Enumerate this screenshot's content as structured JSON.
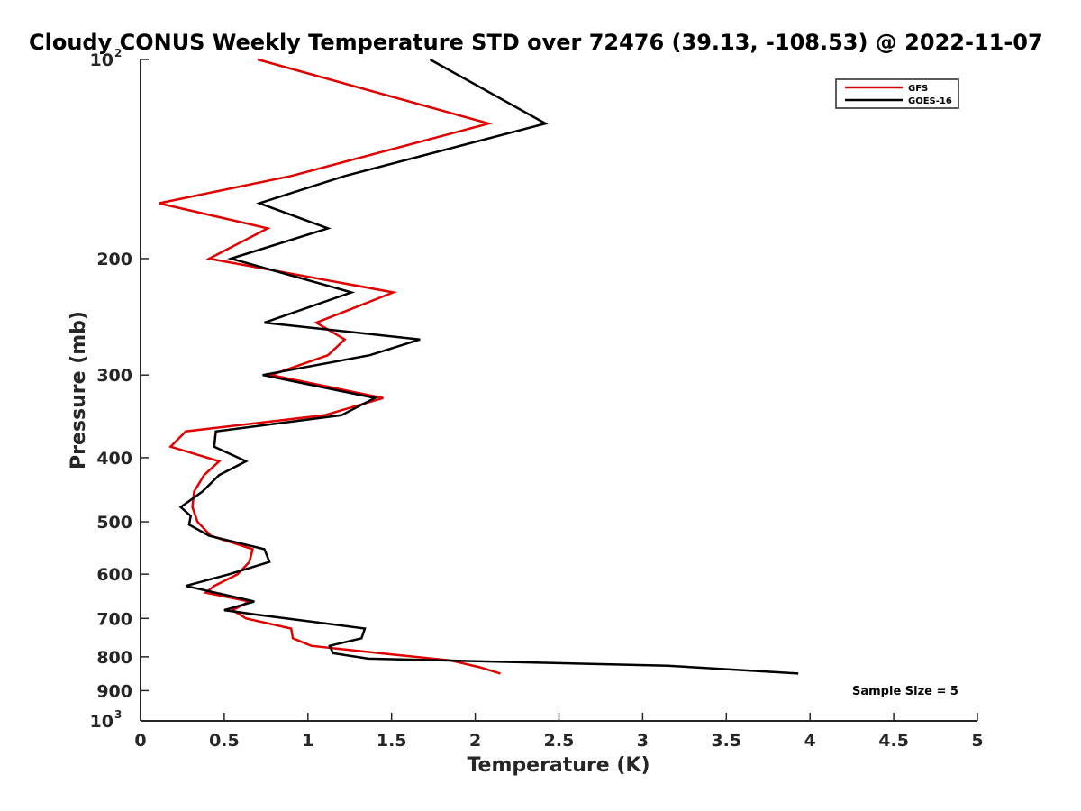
{
  "chart_data": {
    "type": "line",
    "title": "Cloudy CONUS Weekly Temperature STD over 72476 (39.13, -108.53) @ 2022-11-07",
    "xlabel": "Temperature (K)",
    "ylabel": "Pressure (mb)",
    "xlim": [
      0,
      5
    ],
    "ylim": [
      100,
      1000
    ],
    "y_scale": "log",
    "y_reversed": true,
    "grid": false,
    "legend_position": "top-right",
    "x_ticks": [
      "0",
      "0.5",
      "1",
      "1.5",
      "2",
      "2.5",
      "3",
      "3.5",
      "4",
      "4.5",
      "5"
    ],
    "y_ticks": [
      {
        "value": 100,
        "base": "10",
        "exp": "2"
      },
      {
        "value": 200,
        "label": "200"
      },
      {
        "value": 300,
        "label": "300"
      },
      {
        "value": 400,
        "label": "400"
      },
      {
        "value": 500,
        "label": "500"
      },
      {
        "value": 600,
        "label": "600"
      },
      {
        "value": 700,
        "label": "700"
      },
      {
        "value": 800,
        "label": "800"
      },
      {
        "value": 900,
        "label": "900"
      },
      {
        "value": 1000,
        "base": "10",
        "exp": "3"
      }
    ],
    "annotation": "Sample Size = 5",
    "series": [
      {
        "name": "GFS",
        "color": "#e00000",
        "points": [
          [
            0.7,
            100
          ],
          [
            2.08,
            125
          ],
          [
            0.9,
            150
          ],
          [
            0.11,
            165
          ],
          [
            0.76,
            180
          ],
          [
            0.41,
            200
          ],
          [
            1.51,
            225
          ],
          [
            1.05,
            250
          ],
          [
            1.22,
            265
          ],
          [
            1.12,
            280
          ],
          [
            0.78,
            300
          ],
          [
            1.45,
            325
          ],
          [
            1.1,
            345
          ],
          [
            0.27,
            365
          ],
          [
            0.18,
            385
          ],
          [
            0.47,
            405
          ],
          [
            0.38,
            425
          ],
          [
            0.32,
            450
          ],
          [
            0.31,
            475
          ],
          [
            0.34,
            500
          ],
          [
            0.42,
            525
          ],
          [
            0.67,
            550
          ],
          [
            0.65,
            575
          ],
          [
            0.58,
            600
          ],
          [
            0.44,
            625
          ],
          [
            0.39,
            640
          ],
          [
            0.65,
            660
          ],
          [
            0.55,
            680
          ],
          [
            0.63,
            700
          ],
          [
            0.9,
            725
          ],
          [
            0.91,
            750
          ],
          [
            1.02,
            770
          ],
          [
            1.43,
            790
          ],
          [
            1.85,
            810
          ],
          [
            2.03,
            830
          ],
          [
            2.15,
            848
          ]
        ]
      },
      {
        "name": "GOES-16",
        "color": "#000000",
        "points": [
          [
            1.73,
            100
          ],
          [
            2.42,
            125
          ],
          [
            1.22,
            150
          ],
          [
            0.71,
            165
          ],
          [
            1.12,
            180
          ],
          [
            0.54,
            200
          ],
          [
            1.26,
            225
          ],
          [
            0.74,
            250
          ],
          [
            1.67,
            265
          ],
          [
            1.37,
            280
          ],
          [
            0.73,
            300
          ],
          [
            1.4,
            325
          ],
          [
            1.2,
            345
          ],
          [
            0.45,
            365
          ],
          [
            0.44,
            385
          ],
          [
            0.63,
            405
          ],
          [
            0.47,
            425
          ],
          [
            0.37,
            450
          ],
          [
            0.24,
            475
          ],
          [
            0.3,
            490
          ],
          [
            0.29,
            505
          ],
          [
            0.41,
            525
          ],
          [
            0.74,
            550
          ],
          [
            0.77,
            575
          ],
          [
            0.53,
            600
          ],
          [
            0.27,
            625
          ],
          [
            0.68,
            660
          ],
          [
            0.5,
            680
          ],
          [
            0.68,
            690
          ],
          [
            1.34,
            725
          ],
          [
            1.32,
            750
          ],
          [
            1.13,
            770
          ],
          [
            1.15,
            790
          ],
          [
            1.36,
            805
          ],
          [
            3.15,
            825
          ],
          [
            3.93,
            848
          ]
        ]
      }
    ]
  }
}
